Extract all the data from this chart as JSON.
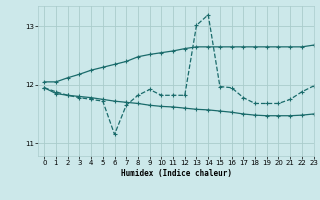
{
  "xlabel": "Humidex (Indice chaleur)",
  "bg_color": "#cce8ea",
  "grid_color": "#aacccc",
  "line_color": "#1a6b6b",
  "xlim": [
    -0.5,
    23
  ],
  "ylim": [
    10.78,
    13.35
  ],
  "yticks": [
    11,
    12,
    13
  ],
  "xticks": [
    0,
    1,
    2,
    3,
    4,
    5,
    6,
    7,
    8,
    9,
    10,
    11,
    12,
    13,
    14,
    15,
    16,
    17,
    18,
    19,
    20,
    21,
    22,
    23
  ],
  "line1_x": [
    0,
    1,
    2,
    3,
    4,
    5,
    6,
    7,
    8,
    9,
    10,
    11,
    12,
    13,
    14,
    15,
    16,
    17,
    18,
    19,
    20,
    21,
    22,
    23
  ],
  "line1_y": [
    12.05,
    12.05,
    12.12,
    12.18,
    12.25,
    12.3,
    12.35,
    12.4,
    12.48,
    12.52,
    12.55,
    12.58,
    12.62,
    12.65,
    12.65,
    12.65,
    12.65,
    12.65,
    12.65,
    12.65,
    12.65,
    12.65,
    12.65,
    12.68
  ],
  "line2_x": [
    0,
    1,
    2,
    3,
    4,
    5,
    6,
    7,
    8,
    9,
    10,
    11,
    12,
    13,
    14,
    15,
    16,
    17,
    18,
    19,
    20,
    21,
    22,
    23
  ],
  "line2_y": [
    11.95,
    11.85,
    11.82,
    11.8,
    11.78,
    11.75,
    11.72,
    11.7,
    11.68,
    11.65,
    11.63,
    11.62,
    11.6,
    11.58,
    11.57,
    11.55,
    11.53,
    11.5,
    11.48,
    11.47,
    11.47,
    11.47,
    11.48,
    11.5
  ],
  "line3_x": [
    0,
    1,
    2,
    3,
    4,
    5,
    6,
    7,
    8,
    9,
    10,
    11,
    12,
    13,
    14,
    15,
    16,
    17,
    18,
    19,
    20,
    21,
    22,
    23
  ],
  "line3_y": [
    11.95,
    11.88,
    11.82,
    11.78,
    11.75,
    11.72,
    11.15,
    11.65,
    11.82,
    11.92,
    11.82,
    11.82,
    11.82,
    13.02,
    13.2,
    11.97,
    11.95,
    11.78,
    11.68,
    11.68,
    11.68,
    11.75,
    11.88,
    11.98
  ]
}
